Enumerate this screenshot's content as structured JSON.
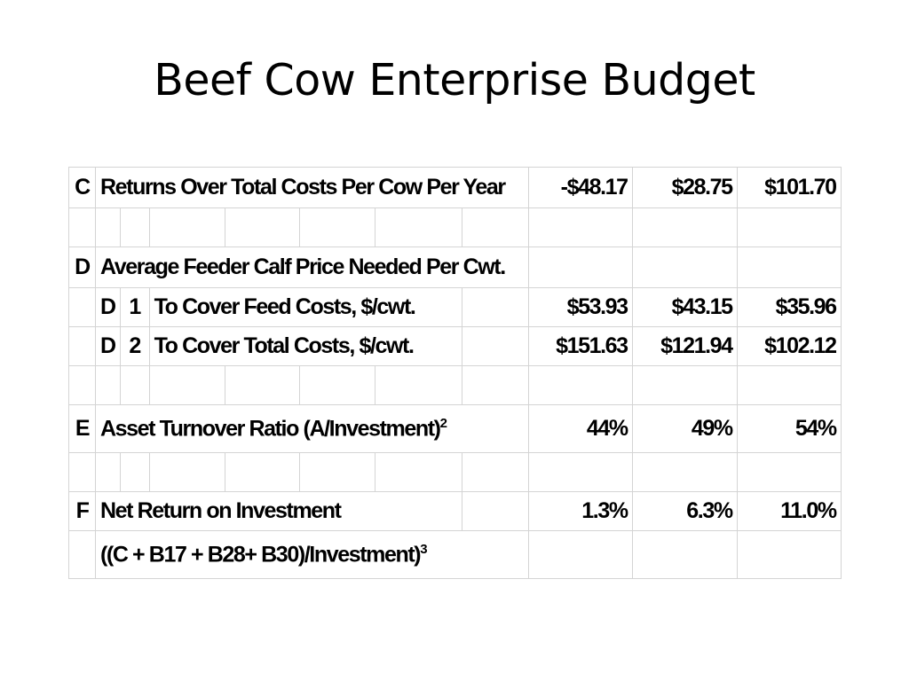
{
  "slide": {
    "title": "Beef Cow Enterprise Budget"
  },
  "table": {
    "rows": [
      {
        "code": "C",
        "label": "Returns Over Total Costs Per Cow Per Year",
        "values": [
          "-$48.17",
          "$28.75",
          "$101.70"
        ]
      },
      {
        "code": "D",
        "label": "Average Feeder Calf Price Needed Per Cwt."
      },
      {
        "code": "D",
        "sub": "1",
        "label": "To Cover Feed Costs, $/cwt.",
        "values": [
          "$53.93",
          "$43.15",
          "$35.96"
        ]
      },
      {
        "code": "D",
        "sub": "2",
        "label": "To Cover Total Costs, $/cwt.",
        "values": [
          "$151.63",
          "$121.94",
          "$102.12"
        ]
      },
      {
        "code": "E",
        "label": "Asset Turnover Ratio (A/Investment)",
        "footnote": "2",
        "values": [
          "44%",
          "49%",
          "54%"
        ]
      },
      {
        "code": "F",
        "label": "Net Return on Investment",
        "values": [
          "1.3%",
          "6.3%",
          "11.0%"
        ]
      },
      {
        "label": "((C + B17 + B28+ B30)/Investment)",
        "footnote": "3"
      }
    ]
  },
  "colors": {
    "gridline": "#d4d4d4",
    "text": "#000000",
    "background": "#ffffff"
  }
}
